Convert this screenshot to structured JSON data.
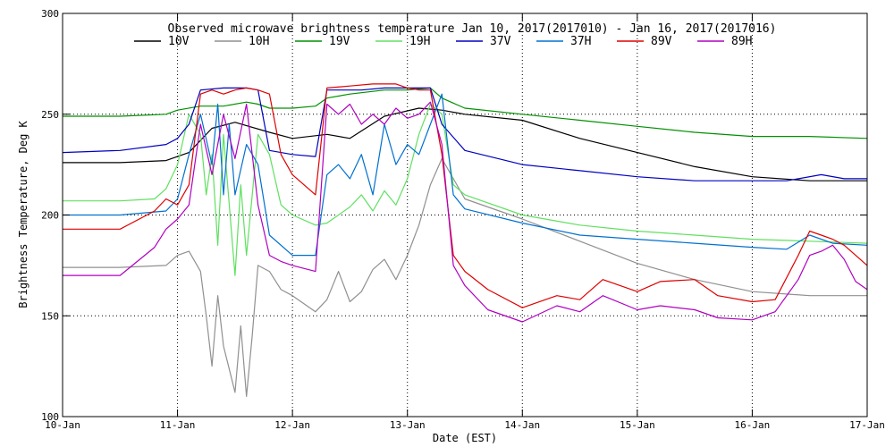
{
  "chart_data": {
    "type": "line",
    "title": "Observed microwave brightness temperature Jan 10, 2017(2017010) - Jan 16, 2017(2017016)",
    "xlabel": "Date (EST)",
    "ylabel": "Brightness Temperature, Deg K",
    "xlim": [
      0,
      7
    ],
    "ylim": [
      100,
      300
    ],
    "x_ticks": [
      {
        "x": 0,
        "label": "10-Jan"
      },
      {
        "x": 1,
        "label": "11-Jan"
      },
      {
        "x": 2,
        "label": "12-Jan"
      },
      {
        "x": 3,
        "label": "13-Jan"
      },
      {
        "x": 4,
        "label": "14-Jan"
      },
      {
        "x": 5,
        "label": "15-Jan"
      },
      {
        "x": 6,
        "label": "16-Jan"
      },
      {
        "x": 7,
        "label": "17-Jan"
      }
    ],
    "y_ticks": [
      100,
      150,
      200,
      250,
      300
    ],
    "grid": "dotted",
    "legend_position": "top",
    "series": [
      {
        "name": "10V",
        "color": "#000000",
        "x": [
          0,
          0.5,
          0.9,
          1.1,
          1.3,
          1.5,
          1.8,
          2.0,
          2.3,
          2.5,
          2.8,
          3.1,
          3.3,
          3.5,
          4.0,
          4.5,
          5.0,
          5.5,
          6.0,
          6.5,
          7.0
        ],
        "y": [
          226,
          226,
          227,
          231,
          243,
          246,
          241,
          238,
          240,
          238,
          249,
          253,
          252,
          250,
          247,
          238,
          231,
          224,
          219,
          217,
          217
        ]
      },
      {
        "name": "10H",
        "color": "#909090",
        "x": [
          0,
          0.5,
          0.9,
          1.0,
          1.1,
          1.2,
          1.25,
          1.3,
          1.35,
          1.4,
          1.5,
          1.55,
          1.6,
          1.65,
          1.7,
          1.8,
          1.9,
          2.0,
          2.2,
          2.3,
          2.4,
          2.5,
          2.6,
          2.7,
          2.8,
          2.9,
          3.0,
          3.1,
          3.2,
          3.3,
          3.5,
          4.0,
          4.5,
          5.0,
          5.5,
          6.0,
          6.5,
          7.0
        ],
        "y": [
          174,
          174,
          175,
          180,
          182,
          172,
          150,
          125,
          160,
          135,
          112,
          145,
          110,
          140,
          175,
          172,
          163,
          160,
          152,
          158,
          172,
          157,
          162,
          173,
          178,
          168,
          180,
          195,
          215,
          228,
          208,
          198,
          187,
          176,
          168,
          162,
          160,
          160
        ]
      },
      {
        "name": "19V",
        "color": "#009000",
        "x": [
          0,
          0.5,
          0.9,
          1.0,
          1.2,
          1.4,
          1.6,
          1.7,
          1.8,
          2.0,
          2.2,
          2.3,
          2.5,
          2.8,
          3.0,
          3.2,
          3.3,
          3.5,
          4.0,
          4.5,
          5.0,
          5.5,
          6.0,
          6.5,
          7.0
        ],
        "y": [
          249,
          249,
          250,
          252,
          254,
          254,
          256,
          255,
          253,
          253,
          254,
          258,
          260,
          262,
          262,
          263,
          258,
          253,
          250,
          247,
          244,
          241,
          239,
          239,
          238
        ]
      },
      {
        "name": "19H",
        "color": "#60e060",
        "x": [
          0,
          0.5,
          0.8,
          0.9,
          1.0,
          1.1,
          1.2,
          1.25,
          1.3,
          1.35,
          1.4,
          1.5,
          1.55,
          1.6,
          1.7,
          1.8,
          1.9,
          2.0,
          2.2,
          2.3,
          2.4,
          2.5,
          2.6,
          2.7,
          2.8,
          2.9,
          3.0,
          3.1,
          3.2,
          3.3,
          3.4,
          3.5,
          4.0,
          4.5,
          5.0,
          5.5,
          6.0,
          6.5,
          7.0
        ],
        "y": [
          207,
          207,
          208,
          213,
          225,
          250,
          240,
          210,
          230,
          185,
          240,
          170,
          215,
          180,
          240,
          230,
          205,
          200,
          195,
          196,
          200,
          204,
          210,
          202,
          212,
          205,
          218,
          240,
          255,
          250,
          215,
          210,
          200,
          195,
          192,
          190,
          188,
          187,
          186
        ]
      },
      {
        "name": "37V",
        "color": "#0000c0",
        "x": [
          0,
          0.5,
          0.9,
          1.0,
          1.1,
          1.2,
          1.4,
          1.6,
          1.7,
          1.8,
          2.0,
          2.2,
          2.3,
          2.4,
          2.6,
          2.8,
          3.0,
          3.2,
          3.3,
          3.5,
          4.0,
          4.5,
          5.0,
          5.5,
          6.0,
          6.3,
          6.6,
          6.8,
          7.0
        ],
        "y": [
          231,
          232,
          235,
          238,
          245,
          262,
          263,
          263,
          262,
          232,
          230,
          229,
          262,
          262,
          262,
          263,
          263,
          263,
          245,
          232,
          225,
          222,
          219,
          217,
          217,
          217,
          220,
          218,
          218
        ]
      },
      {
        "name": "37H",
        "color": "#0070d0",
        "x": [
          0,
          0.5,
          0.9,
          1.0,
          1.1,
          1.2,
          1.3,
          1.35,
          1.4,
          1.45,
          1.5,
          1.6,
          1.7,
          1.8,
          2.0,
          2.2,
          2.3,
          2.4,
          2.5,
          2.6,
          2.7,
          2.8,
          2.9,
          3.0,
          3.1,
          3.2,
          3.3,
          3.4,
          3.5,
          4.0,
          4.5,
          5.0,
          5.5,
          6.0,
          6.3,
          6.5,
          6.7,
          7.0
        ],
        "y": [
          200,
          200,
          202,
          208,
          230,
          250,
          225,
          255,
          210,
          245,
          210,
          235,
          225,
          190,
          180,
          180,
          220,
          225,
          218,
          230,
          210,
          245,
          225,
          235,
          230,
          245,
          260,
          210,
          203,
          196,
          190,
          188,
          186,
          184,
          183,
          190,
          186,
          185
        ]
      },
      {
        "name": "89V",
        "color": "#e00000",
        "x": [
          0,
          0.5,
          0.8,
          0.9,
          1.0,
          1.1,
          1.2,
          1.3,
          1.4,
          1.5,
          1.6,
          1.7,
          1.8,
          1.9,
          2.0,
          2.2,
          2.3,
          2.5,
          2.7,
          2.9,
          3.0,
          3.1,
          3.2,
          3.3,
          3.4,
          3.5,
          3.7,
          4.0,
          4.3,
          4.5,
          4.7,
          5.0,
          5.2,
          5.5,
          5.7,
          6.0,
          6.2,
          6.4,
          6.5,
          6.6,
          6.7,
          6.8,
          6.9,
          7.0
        ],
        "y": [
          193,
          193,
          202,
          208,
          205,
          215,
          260,
          262,
          260,
          262,
          263,
          262,
          260,
          230,
          220,
          210,
          263,
          264,
          265,
          265,
          263,
          262,
          262,
          230,
          180,
          172,
          163,
          154,
          160,
          158,
          168,
          162,
          167,
          168,
          160,
          157,
          158,
          180,
          192,
          190,
          188,
          185,
          180,
          175
        ]
      },
      {
        "name": "89H",
        "color": "#b000c0",
        "x": [
          0,
          0.5,
          0.8,
          0.9,
          1.0,
          1.1,
          1.2,
          1.3,
          1.4,
          1.5,
          1.6,
          1.7,
          1.8,
          1.9,
          2.0,
          2.2,
          2.3,
          2.4,
          2.5,
          2.6,
          2.7,
          2.8,
          2.9,
          3.0,
          3.1,
          3.2,
          3.3,
          3.4,
          3.5,
          3.7,
          4.0,
          4.3,
          4.5,
          4.7,
          5.0,
          5.2,
          5.5,
          5.7,
          6.0,
          6.2,
          6.4,
          6.5,
          6.6,
          6.7,
          6.8,
          6.9,
          7.0
        ],
        "y": [
          170,
          170,
          184,
          193,
          198,
          205,
          245,
          220,
          250,
          228,
          255,
          205,
          180,
          177,
          175,
          172,
          255,
          250,
          255,
          245,
          250,
          245,
          253,
          248,
          250,
          256,
          235,
          175,
          165,
          153,
          147,
          155,
          152,
          160,
          153,
          155,
          153,
          149,
          148,
          152,
          168,
          180,
          182,
          185,
          178,
          167,
          163
        ]
      }
    ]
  }
}
